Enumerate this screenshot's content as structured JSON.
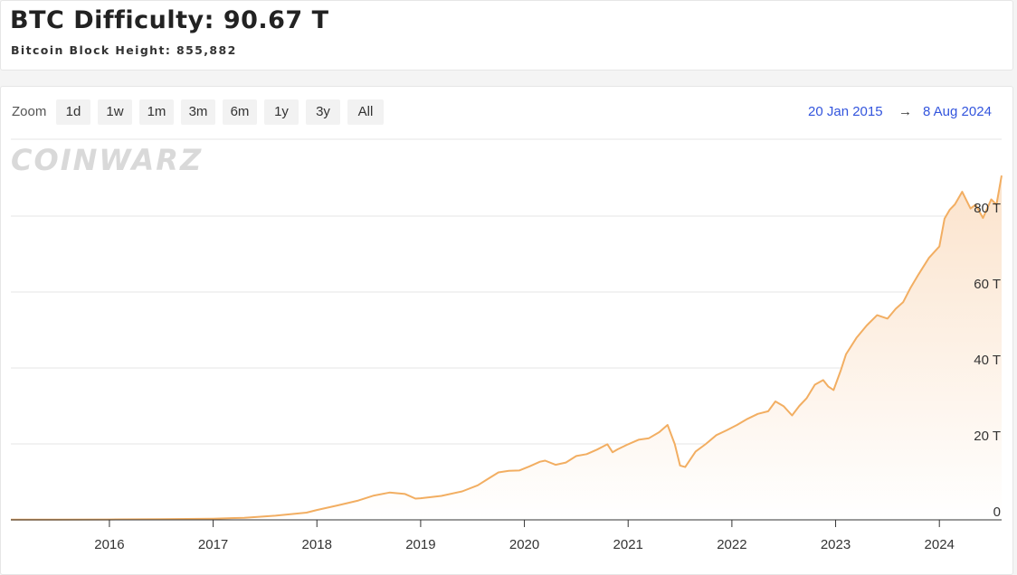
{
  "header": {
    "title": "BTC Difficulty: 90.67 T",
    "subtitle": "Bitcoin Block Height: 855,882"
  },
  "controls": {
    "zoom_label": "Zoom",
    "zoom_options": [
      "1d",
      "1w",
      "1m",
      "3m",
      "6m",
      "1y",
      "3y",
      "All"
    ],
    "range_from": "20 Jan 2015",
    "range_arrow": "→",
    "range_to": "8 Aug 2024"
  },
  "watermark": "COINWARZ",
  "colors": {
    "line": "#f2ae62",
    "area_top": "#fbe3cc",
    "area_bottom": "#ffffff",
    "grid": "#e6e6e6",
    "range_link": "#3355dd"
  },
  "chart_data": {
    "type": "area",
    "title": "BTC Difficulty: 90.67 T",
    "xlabel": "",
    "ylabel": "",
    "x_ticks": [
      "2016",
      "2017",
      "2018",
      "2019",
      "2020",
      "2021",
      "2022",
      "2023",
      "2024"
    ],
    "y_ticks": [
      "0",
      "20 T",
      "40 T",
      "60 T",
      "80 T"
    ],
    "xlim": [
      2015.05,
      2024.6
    ],
    "ylim": [
      0,
      90
    ],
    "grid": true,
    "series": [
      {
        "unit": "T",
        "x": [
          2015.05,
          2015.5,
          2016.0,
          2016.5,
          2017.0,
          2017.3,
          2017.6,
          2017.9,
          2018.0,
          2018.2,
          2018.4,
          2018.55,
          2018.7,
          2018.85,
          2018.95,
          2019.0,
          2019.2,
          2019.4,
          2019.55,
          2019.65,
          2019.75,
          2019.85,
          2019.95,
          2020.05,
          2020.15,
          2020.2,
          2020.3,
          2020.4,
          2020.5,
          2020.6,
          2020.7,
          2020.8,
          2020.85,
          2020.9,
          2021.0,
          2021.1,
          2021.2,
          2021.3,
          2021.38,
          2021.45,
          2021.5,
          2021.55,
          2021.65,
          2021.75,
          2021.85,
          2021.95,
          2022.05,
          2022.15,
          2022.25,
          2022.35,
          2022.42,
          2022.5,
          2022.58,
          2022.65,
          2022.72,
          2022.8,
          2022.88,
          2022.93,
          2022.98,
          2023.05,
          2023.1,
          2023.2,
          2023.3,
          2023.4,
          2023.5,
          2023.58,
          2023.65,
          2023.72,
          2023.8,
          2023.9,
          2024.0,
          2024.05,
          2024.1,
          2024.15,
          2024.22,
          2024.3,
          2024.35,
          2024.42,
          2024.5,
          2024.55,
          2024.6
        ],
        "values": [
          0.05,
          0.07,
          0.1,
          0.2,
          0.3,
          0.55,
          1.1,
          1.9,
          2.6,
          3.8,
          5.1,
          6.4,
          7.2,
          6.8,
          5.6,
          5.7,
          6.3,
          7.5,
          9.1,
          10.8,
          12.5,
          12.9,
          13.0,
          14.1,
          15.3,
          15.6,
          14.5,
          15.1,
          16.8,
          17.3,
          18.5,
          19.9,
          17.8,
          18.6,
          19.9,
          21.1,
          21.5,
          23.1,
          25.0,
          19.9,
          14.3,
          13.9,
          18.0,
          20.0,
          22.3,
          23.6,
          25.0,
          26.6,
          27.9,
          28.6,
          31.2,
          29.9,
          27.5,
          30.0,
          32.0,
          35.6,
          36.8,
          35.1,
          34.2,
          39.4,
          43.6,
          47.9,
          51.2,
          53.9,
          53.0,
          55.6,
          57.3,
          61.0,
          64.7,
          69.0,
          72.0,
          79.3,
          81.7,
          83.1,
          86.4,
          82.0,
          83.0,
          79.5,
          84.4,
          83.0,
          90.67
        ]
      }
    ]
  }
}
